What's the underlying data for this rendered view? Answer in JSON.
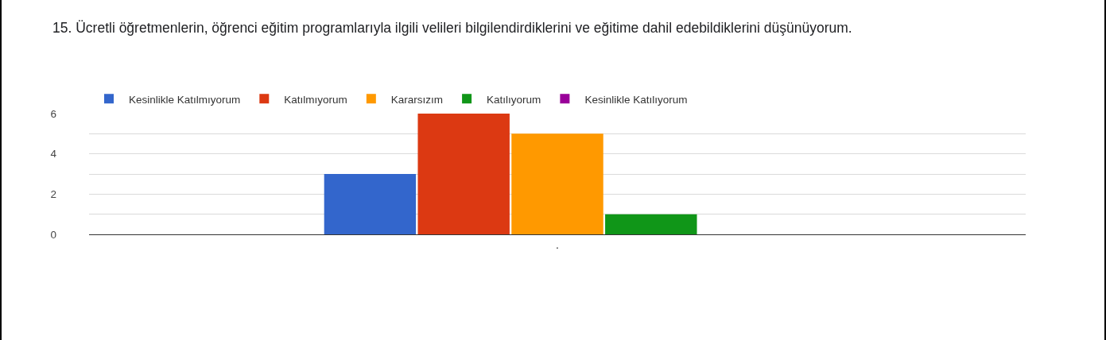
{
  "chart_data": {
    "type": "bar",
    "title": "15. Ücretli öğretmenlerin, öğrenci eğitim programlarıyla ilgili velileri bilgilendirdiklerini ve eğitime dahil edebildiklerini düşünüyorum.",
    "categories": [
      "."
    ],
    "series": [
      {
        "name": "Kesinlikle Katılmıyorum",
        "color": "#3366cc",
        "values": [
          3
        ]
      },
      {
        "name": "Katılmıyorum",
        "color": "#dc3912",
        "values": [
          6
        ]
      },
      {
        "name": "Kararsızım",
        "color": "#ff9900",
        "values": [
          5
        ]
      },
      {
        "name": "Katılıyorum",
        "color": "#109618",
        "values": [
          1
        ]
      },
      {
        "name": "Kesinlikle Katılıyorum",
        "color": "#990099",
        "values": [
          0
        ]
      }
    ],
    "ylim": [
      0,
      6
    ],
    "yticks": [
      0,
      {
        "value": 1,
        "label": null
      },
      2,
      {
        "value": 3,
        "label": null
      },
      4,
      {
        "value": 5,
        "label": null
      },
      6
    ],
    "grid": "y",
    "legend": "top"
  }
}
